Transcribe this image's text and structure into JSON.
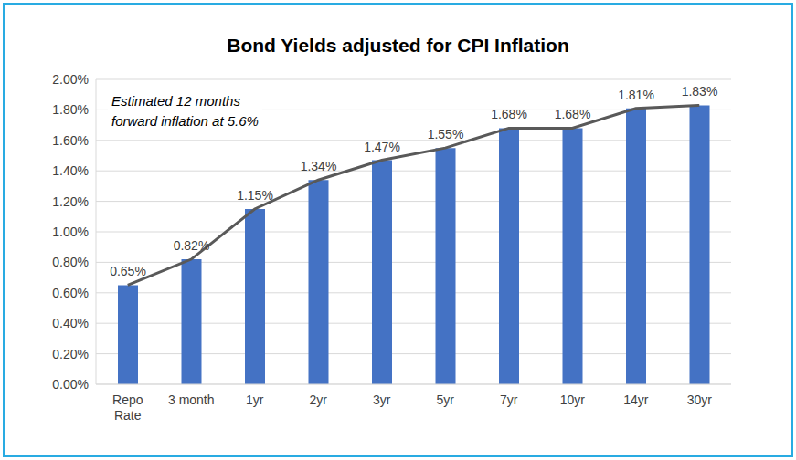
{
  "chart_data": {
    "type": "bar",
    "title": "Bond Yields adjusted for CPI Inflation",
    "annotation": [
      "Estimated 12 months",
      "forward inflation at 5.6%"
    ],
    "categories": [
      "Repo Rate",
      "3 month",
      "1yr",
      "2yr",
      "3yr",
      "5yr",
      "7yr",
      "10yr",
      "14yr",
      "30yr"
    ],
    "series": [
      {
        "type": "bar",
        "color": "#4472c4",
        "data_labels": true,
        "values": [
          0.65,
          0.82,
          1.15,
          1.34,
          1.47,
          1.55,
          1.68,
          1.68,
          1.81,
          1.83
        ],
        "value_labels": [
          "0.65%",
          "0.82%",
          "1.15%",
          "1.34%",
          "1.47%",
          "1.55%",
          "1.68%",
          "1.68%",
          "1.81%",
          "1.83%"
        ]
      },
      {
        "type": "line",
        "color": "#595959",
        "line_style": "solid",
        "values": [
          0.65,
          0.82,
          1.15,
          1.34,
          1.47,
          1.55,
          1.68,
          1.68,
          1.81,
          1.83
        ]
      }
    ],
    "ylim": [
      0,
      2
    ],
    "yticks": [
      {
        "value": 0,
        "label": "0.00%"
      },
      {
        "value": 0.2,
        "label": "0.20%"
      },
      {
        "value": 0.4,
        "label": "0.40%"
      },
      {
        "value": 0.6,
        "label": "0.60%"
      },
      {
        "value": 0.8,
        "label": "0.80%"
      },
      {
        "value": 1,
        "label": "1.00%"
      },
      {
        "value": 1.2,
        "label": "1.20%"
      },
      {
        "value": 1.4,
        "label": "1.40%"
      },
      {
        "value": 1.6,
        "label": "1.60%"
      },
      {
        "value": 1.8,
        "label": "1.80%"
      },
      {
        "value": 2,
        "label": "2.00%"
      }
    ],
    "grid": true
  }
}
